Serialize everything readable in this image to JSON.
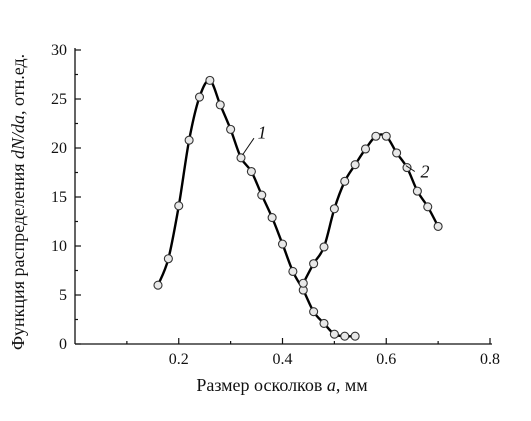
{
  "chart_data": {
    "type": "line",
    "xlabel_prefix": "Размер осколков ",
    "xlabel_var": "a",
    "xlabel_suffix": ", мм",
    "ylabel_prefix": "Функция распределения ",
    "ylabel_var": "dN/da",
    "ylabel_suffix": ", отн.ед.",
    "xlim": [
      0,
      0.8
    ],
    "ylim": [
      0,
      30
    ],
    "x_ticks": [
      0.2,
      0.4,
      0.6,
      0.8
    ],
    "x_tick_labels": [
      "0.2",
      "0.4",
      "0.6",
      "0.8"
    ],
    "y_ticks": [
      0,
      5,
      10,
      15,
      20,
      25,
      30
    ],
    "y_tick_labels": [
      "0",
      "5",
      "10",
      "15",
      "20",
      "25",
      "30"
    ],
    "grid": false,
    "series": [
      {
        "name": "1",
        "x": [
          0.16,
          0.18,
          0.2,
          0.22,
          0.24,
          0.26,
          0.28,
          0.3,
          0.32,
          0.34,
          0.36,
          0.38,
          0.4,
          0.42,
          0.44,
          0.46,
          0.48,
          0.5,
          0.52,
          0.54
        ],
        "y": [
          6.0,
          8.7,
          14.1,
          20.8,
          25.2,
          26.9,
          24.4,
          21.9,
          19.0,
          17.6,
          15.2,
          12.9,
          10.2,
          7.4,
          5.5,
          3.3,
          2.1,
          1.0,
          0.8,
          0.8
        ]
      },
      {
        "name": "2",
        "x": [
          0.44,
          0.46,
          0.48,
          0.5,
          0.52,
          0.54,
          0.56,
          0.58,
          0.6,
          0.62,
          0.64,
          0.66,
          0.68,
          0.7
        ],
        "y": [
          6.2,
          8.2,
          9.9,
          13.8,
          16.6,
          18.3,
          19.9,
          21.2,
          21.2,
          19.5,
          18.0,
          15.6,
          14.0,
          12.0
        ]
      }
    ]
  }
}
